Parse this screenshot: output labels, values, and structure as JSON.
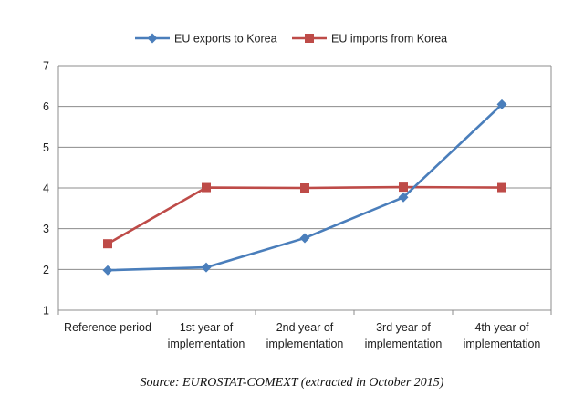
{
  "chart_data": {
    "type": "line",
    "title": "",
    "xlabel": "",
    "ylabel": "",
    "categories": [
      [
        "Reference period"
      ],
      [
        "1st year of",
        "implementation"
      ],
      [
        "2nd year of",
        "implementation"
      ],
      [
        "3rd year of",
        "implementation"
      ],
      [
        "4th year of",
        "implementation"
      ]
    ],
    "ylim": [
      1,
      7
    ],
    "yticks": [
      "1",
      "2",
      "3",
      "4",
      "5",
      "6",
      "7"
    ],
    "grid": true,
    "legend_position": "top",
    "series": [
      {
        "name": "EU exports to Korea",
        "color": "#4A7EBB",
        "marker": "diamond",
        "values": [
          1.98,
          2.05,
          2.77,
          3.77,
          6.05
        ]
      },
      {
        "name": "EU imports from Korea",
        "color": "#BE4B48",
        "marker": "square",
        "values": [
          2.63,
          4.01,
          4.0,
          4.02,
          4.01
        ]
      }
    ]
  },
  "source": "Source: EUROSTAT-COMEXT (extracted in October 2015)"
}
